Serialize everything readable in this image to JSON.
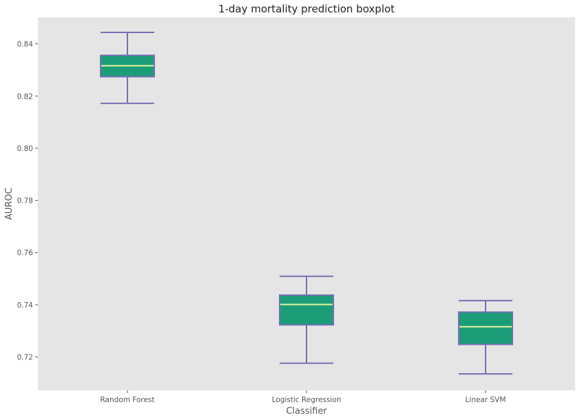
{
  "chart_data": {
    "type": "boxplot",
    "title": "1-day mortality prediction boxplot",
    "xlabel": "Classifier",
    "ylabel": "AUROC",
    "ylim": [
      0.7072,
      0.8502
    ],
    "yticks": [
      "0.72",
      "0.74",
      "0.76",
      "0.78",
      "0.80",
      "0.82",
      "0.84"
    ],
    "grid": false,
    "categories": [
      "Random Forest",
      "Logistic Regression",
      "Linear SVM"
    ],
    "boxes": [
      {
        "category": "Random Forest",
        "whislo": 0.8172,
        "q1": 0.8274,
        "median": 0.8316,
        "q3": 0.8356,
        "whishi": 0.8444
      },
      {
        "category": "Logistic Regression",
        "whislo": 0.7176,
        "q1": 0.7323,
        "median": 0.7401,
        "q3": 0.7437,
        "whishi": 0.7509
      },
      {
        "category": "Linear SVM",
        "whislo": 0.7135,
        "q1": 0.7248,
        "median": 0.7316,
        "q3": 0.7372,
        "whishi": 0.7416
      }
    ],
    "colors": {
      "background": "#e5e5e5",
      "box_fill": "#1b9e77",
      "box_edge": "#7570b3",
      "median": "#e6f5a0"
    }
  }
}
